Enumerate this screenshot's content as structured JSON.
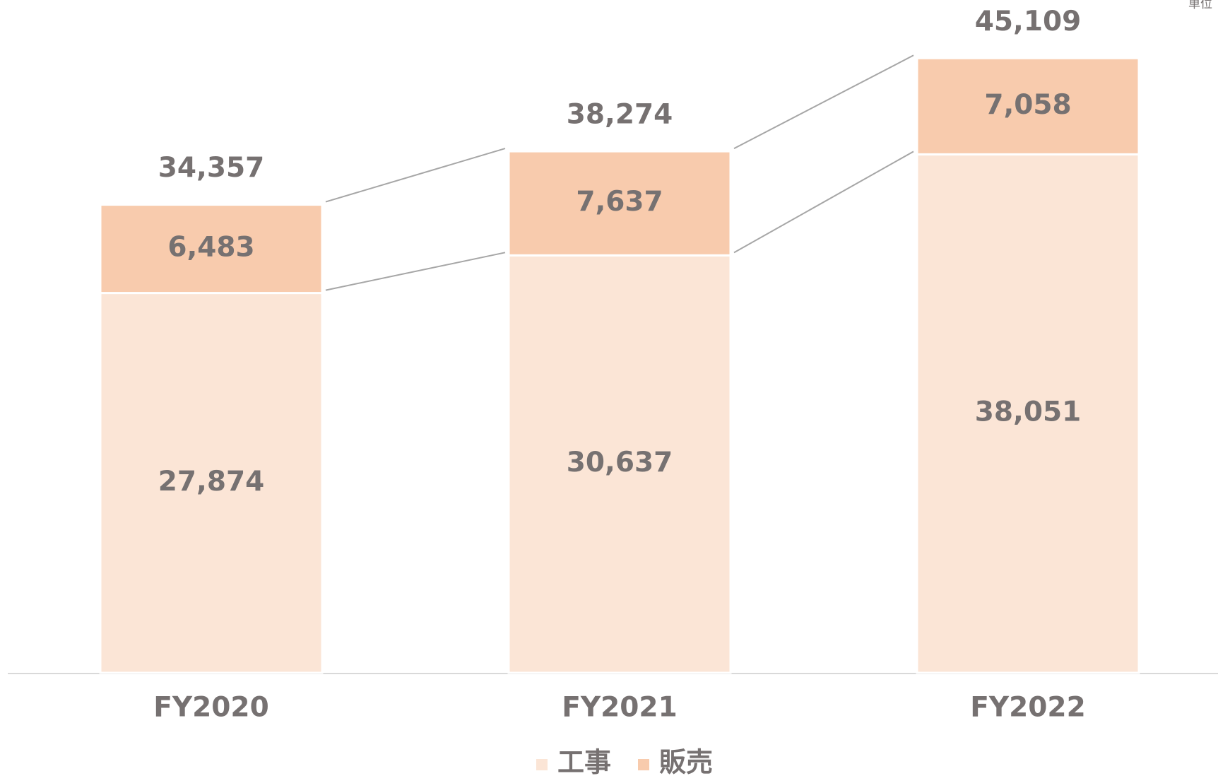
{
  "chart_data": {
    "type": "stacked_bar",
    "unit_label": "単位",
    "categories": [
      "FY2020",
      "FY2021",
      "FY2022"
    ],
    "series": [
      {
        "name": "工事",
        "color": "#fbe5d6",
        "values": [
          27874,
          30637,
          38051
        ]
      },
      {
        "name": "販売",
        "color": "#f8cbad",
        "values": [
          6483,
          7637,
          7058
        ]
      }
    ],
    "totals": [
      34357,
      38274,
      45109
    ],
    "ylim": [
      0,
      50000
    ],
    "legend": "bottom"
  }
}
